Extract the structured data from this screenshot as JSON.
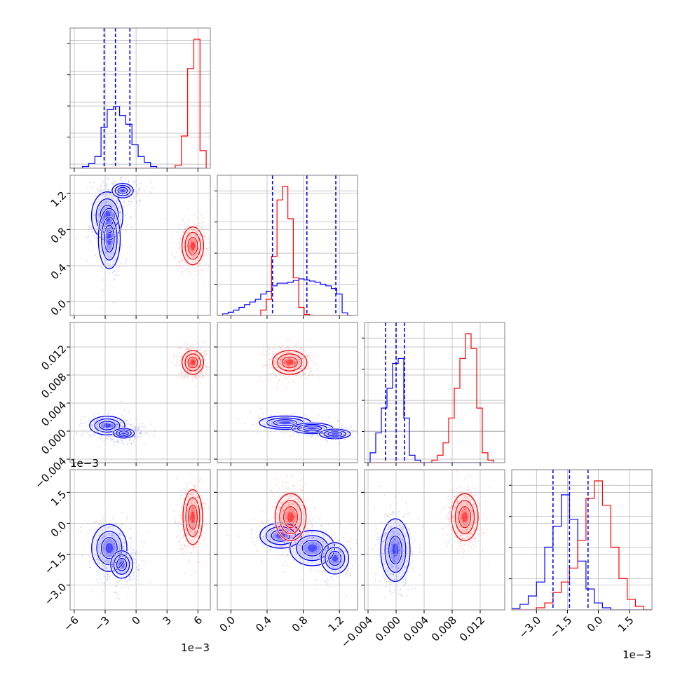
{
  "colors": {
    "series_a": "#0000ff",
    "series_b": "#ff0000",
    "grid": "#b0b0b0",
    "frame": "#808080"
  },
  "chart_data": {
    "type": "corner",
    "title": "",
    "series": [
      {
        "name": "",
        "color": "#0000ff"
      },
      {
        "name": "",
        "color": "#ff0000"
      }
    ],
    "variables": [
      {
        "index": 0,
        "label": "",
        "range": [
          -6.4,
          7.2
        ],
        "ticks": [
          -6,
          -3,
          0,
          3,
          6
        ],
        "tick_labels": [
          "−6",
          "−3",
          "0",
          "3",
          "6"
        ],
        "offset_label": "1e−3"
      },
      {
        "index": 1,
        "label": "",
        "range": [
          -0.15,
          1.4
        ],
        "ticks": [
          0.0,
          0.4,
          0.8,
          1.2
        ],
        "tick_labels": [
          "0.0",
          "0.4",
          "0.8",
          "1.2"
        ],
        "offset_label": ""
      },
      {
        "index": 2,
        "label": "",
        "range": [
          -0.0045,
          0.0155
        ],
        "ticks": [
          -0.004,
          0.0,
          0.004,
          0.008,
          0.012
        ],
        "tick_labels": [
          "−0.004",
          "0.000",
          "0.004",
          "0.008",
          "0.012"
        ],
        "offset_label": ""
      },
      {
        "index": 3,
        "label": "",
        "range": [
          -4.2,
          2.6
        ],
        "ticks": [
          -3.0,
          -1.5,
          0.0,
          1.5
        ],
        "tick_labels": [
          "−3.0",
          "−1.5",
          "0.0",
          "1.5"
        ],
        "offset_label": "1e−3"
      }
    ],
    "quantiles": [
      [
        -3.1,
        -2.0,
        -0.6
      ],
      [
        0.46,
        0.84,
        1.16
      ],
      [
        -0.0015,
        0.0,
        0.0012
      ],
      [
        -2.2,
        -1.4,
        -0.5
      ]
    ],
    "blobs": [
      {
        "series": 0,
        "pairs": [
          [
            0,
            1
          ],
          [
            0.05,
            0.45
          ]
        ],
        "centers": [
          [
            -2.8,
            0.95
          ],
          [
            -2.6,
            0.7
          ],
          [
            -1.3,
            1.23
          ]
        ],
        "sigmas": [
          [
            0.8,
            0.14
          ],
          [
            0.7,
            0.22
          ],
          [
            0.9,
            0.07
          ]
        ],
        "weights": [
          1.0,
          0.8,
          0.6
        ]
      },
      {
        "series": 1,
        "pairs": [
          [
            0,
            1
          ]
        ],
        "centers": [
          [
            5.5,
            0.62
          ]
        ],
        "sigmas": [
          [
            0.55,
            0.11
          ]
        ],
        "weights": [
          1.0
        ]
      },
      {
        "series": 0,
        "pairs": [
          [
            0,
            2
          ]
        ],
        "centers": [
          [
            -2.8,
            0.0008
          ],
          [
            -1.2,
            -0.0003
          ]
        ],
        "sigmas": [
          [
            0.9,
            0.0007
          ],
          [
            0.9,
            0.0006
          ]
        ],
        "weights": [
          1.0,
          0.6
        ]
      },
      {
        "series": 1,
        "pairs": [
          [
            0,
            2
          ]
        ],
        "centers": [
          [
            5.5,
            0.0098
          ]
        ],
        "sigmas": [
          [
            0.55,
            0.0009
          ]
        ],
        "weights": [
          1.0
        ]
      },
      {
        "series": 0,
        "pairs": [
          [
            0,
            3
          ]
        ],
        "centers": [
          [
            -2.6,
            -1.2
          ],
          [
            -1.4,
            -2.0
          ]
        ],
        "sigmas": [
          [
            0.9,
            0.6
          ],
          [
            0.8,
            0.5
          ]
        ],
        "weights": [
          1.0,
          0.7
        ]
      },
      {
        "series": 1,
        "pairs": [
          [
            0,
            3
          ]
        ],
        "centers": [
          [
            5.5,
            0.3
          ]
        ],
        "sigmas": [
          [
            0.5,
            0.7
          ]
        ],
        "weights": [
          1.0
        ]
      },
      {
        "series": 0,
        "pairs": [
          [
            1,
            2
          ]
        ],
        "centers": [
          [
            0.6,
            0.0012
          ],
          [
            0.9,
            0.0004
          ],
          [
            1.15,
            -0.0004
          ]
        ],
        "sigmas": [
          [
            0.15,
            0.0005
          ],
          [
            0.12,
            0.0004
          ],
          [
            0.1,
            0.0004
          ]
        ],
        "weights": [
          1.0,
          1.0,
          0.9
        ]
      },
      {
        "series": 1,
        "pairs": [
          [
            1,
            2
          ]
        ],
        "centers": [
          [
            0.65,
            0.0098
          ]
        ],
        "sigmas": [
          [
            0.1,
            0.0009
          ]
        ],
        "weights": [
          1.0
        ]
      },
      {
        "series": 0,
        "pairs": [
          [
            1,
            3
          ]
        ],
        "centers": [
          [
            0.55,
            -0.6
          ],
          [
            0.9,
            -1.2
          ],
          [
            1.15,
            -1.7
          ]
        ],
        "sigmas": [
          [
            0.15,
            0.4
          ],
          [
            0.13,
            0.45
          ],
          [
            0.1,
            0.5
          ]
        ],
        "weights": [
          0.8,
          1.0,
          0.8
        ]
      },
      {
        "series": 1,
        "pairs": [
          [
            1,
            3
          ]
        ],
        "centers": [
          [
            0.66,
            0.3
          ]
        ],
        "sigmas": [
          [
            0.09,
            0.6
          ]
        ],
        "weights": [
          1.0
        ]
      },
      {
        "series": 0,
        "pairs": [
          [
            2,
            3
          ]
        ],
        "centers": [
          [
            -0.0001,
            -1.3
          ]
        ],
        "sigmas": [
          [
            0.0011,
            0.8
          ]
        ],
        "weights": [
          1.0
        ]
      },
      {
        "series": 1,
        "pairs": [
          [
            2,
            3
          ]
        ],
        "centers": [
          [
            0.0098,
            0.3
          ]
        ],
        "sigmas": [
          [
            0.001,
            0.6
          ]
        ],
        "weights": [
          1.0
        ]
      }
    ],
    "histograms": [
      {
        "variable": 0,
        "bins": [
          -6.4,
          -5.8,
          -5.2,
          -4.6,
          -4.0,
          -3.4,
          -2.8,
          -2.2,
          -1.6,
          -1.0,
          -0.4,
          0.2,
          0.8,
          1.4,
          2.0,
          2.6,
          3.2,
          3.8,
          4.4,
          5.0,
          5.6,
          6.2,
          6.8
        ],
        "series": [
          {
            "name": "",
            "counts": [
              0,
              0,
              3,
              8,
              20,
              70,
              100,
              105,
              90,
              75,
              40,
              20,
              10,
              3,
              0,
              0,
              0,
              0,
              0,
              0,
              0,
              0
            ]
          },
          {
            "name": "",
            "counts": [
              0,
              0,
              0,
              0,
              0,
              0,
              0,
              0,
              0,
              0,
              0,
              0,
              0,
              0,
              0,
              0,
              0,
              5,
              55,
              170,
              220,
              30
            ]
          }
        ]
      },
      {
        "variable": 1,
        "bins": [
          -0.15,
          -0.09,
          -0.03,
          0.03,
          0.09,
          0.15,
          0.21,
          0.27,
          0.33,
          0.39,
          0.45,
          0.51,
          0.57,
          0.63,
          0.69,
          0.75,
          0.81,
          0.87,
          0.93,
          0.99,
          1.05,
          1.11,
          1.17,
          1.23,
          1.29,
          1.35
        ],
        "series": [
          {
            "name": "",
            "counts": [
              0,
              3,
              6,
              10,
              15,
              20,
              25,
              30,
              40,
              45,
              55,
              60,
              60,
              62,
              65,
              68,
              66,
              64,
              62,
              58,
              55,
              50,
              40,
              5,
              0
            ]
          },
          {
            "name": "",
            "counts": [
              0,
              0,
              0,
              0,
              0,
              0,
              0,
              0,
              10,
              30,
              110,
              215,
              240,
              180,
              70,
              15,
              2,
              0,
              0,
              0,
              0,
              0,
              0,
              0,
              0
            ]
          }
        ]
      },
      {
        "variable": 2,
        "bins": [
          -0.0045,
          -0.0037,
          -0.0029,
          -0.0021,
          -0.0013,
          -0.0005,
          0.0003,
          0.0011,
          0.0019,
          0.0027,
          0.0035,
          0.0043,
          0.0051,
          0.0059,
          0.0067,
          0.0075,
          0.0083,
          0.0091,
          0.0099,
          0.0107,
          0.0115,
          0.0123,
          0.0131,
          0.0139
        ],
        "series": [
          {
            "name": "",
            "counts": [
              0,
              20,
              60,
              110,
              150,
              200,
              210,
              90,
              15,
              5,
              0,
              0,
              0,
              0,
              0,
              0,
              0,
              0,
              0,
              0,
              0,
              0,
              0
            ]
          },
          {
            "name": "",
            "counts": [
              0,
              0,
              0,
              0,
              0,
              0,
              0,
              0,
              0,
              0,
              0,
              0,
              5,
              15,
              40,
              90,
              150,
              210,
              260,
              230,
              110,
              20,
              5
            ]
          }
        ]
      },
      {
        "variable": 3,
        "bins": [
          -4.2,
          -3.8,
          -3.4,
          -3.0,
          -2.6,
          -2.2,
          -1.8,
          -1.4,
          -1.0,
          -0.6,
          -0.2,
          0.2,
          0.6,
          1.0,
          1.4,
          1.8,
          2.2,
          2.6
        ],
        "series": [
          {
            "name": "",
            "counts": [
              2,
              8,
              20,
              40,
              90,
              120,
              165,
              130,
              70,
              30,
              10,
              3,
              0,
              0,
              0,
              0,
              0
            ]
          },
          {
            "name": "",
            "counts": [
              0,
              0,
              0,
              3,
              10,
              25,
              40,
              60,
              100,
              160,
              185,
              150,
              90,
              45,
              15,
              5,
              0
            ]
          }
        ]
      }
    ]
  }
}
